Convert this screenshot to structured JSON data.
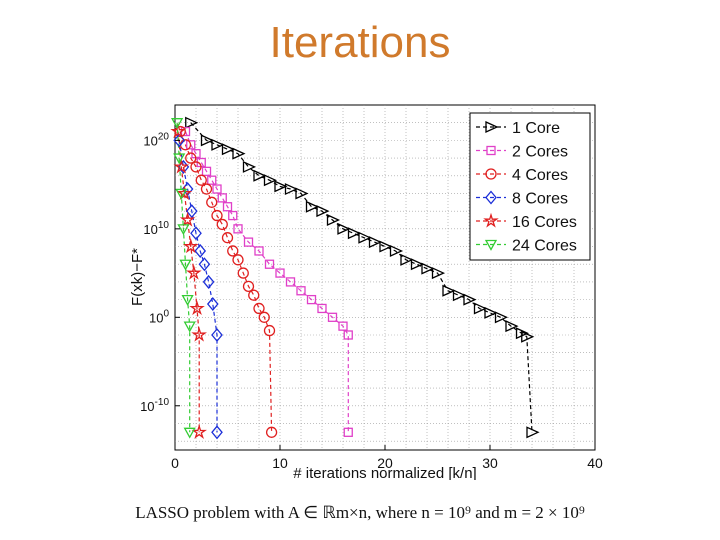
{
  "slide": {
    "title": "Iterations",
    "caption": "LASSO problem with A ∈ ℝm×n, where n = 10⁹ and m = 2 × 10⁹"
  },
  "chart_data": {
    "type": "line",
    "title": "",
    "xlabel": "# iterations normalized [k/n]",
    "ylabel": "F(xk)−F*",
    "y_scale": "log10",
    "xlim": [
      0,
      40
    ],
    "ylim_log10": [
      -15,
      24
    ],
    "x_ticks": [
      0,
      10,
      20,
      30,
      40
    ],
    "y_ticks": [
      {
        "label": "10",
        "exp": "-10",
        "value_log10": -10
      },
      {
        "label": "10",
        "exp": "0",
        "value_log10": 0
      },
      {
        "label": "10",
        "exp": "10",
        "value_log10": 10
      },
      {
        "label": "10",
        "exp": "20",
        "value_log10": 20
      }
    ],
    "grid": true,
    "legend_position": "top-right",
    "series": [
      {
        "name": "1 Core",
        "color": "#000000",
        "marker": "triangle-right",
        "x": [
          1.5,
          3,
          4,
          5,
          6,
          7,
          8,
          9,
          10,
          11,
          12,
          13,
          14,
          15,
          16,
          17,
          18,
          19,
          20,
          21,
          22,
          23,
          24,
          25,
          26,
          27,
          28,
          29,
          30,
          31,
          32,
          33,
          33.5,
          34
        ],
        "y_log10": [
          22,
          20,
          19.5,
          19,
          18.5,
          17,
          16,
          15.5,
          14.8,
          14.5,
          14,
          12.5,
          12,
          11,
          10,
          9.5,
          9,
          8.5,
          8,
          7.5,
          6.5,
          6,
          5.5,
          5,
          3,
          2.5,
          2,
          1,
          0.5,
          0,
          -1,
          -1.8,
          -2.2,
          -13
        ]
      },
      {
        "name": "2 Cores",
        "color": "#e040c8",
        "marker": "square",
        "x": [
          1,
          1.5,
          2,
          2.5,
          3,
          3.5,
          4,
          4.5,
          5,
          5.5,
          6,
          7,
          8,
          9,
          10,
          11,
          12,
          13,
          14,
          15,
          16,
          16.5,
          16.5
        ],
        "y_log10": [
          21,
          19.5,
          18.5,
          17.5,
          16.5,
          15.5,
          14.5,
          13.5,
          12.5,
          11.5,
          10,
          8.5,
          7.5,
          6,
          5,
          4,
          3,
          2,
          1,
          0,
          -1,
          -2,
          -13
        ]
      },
      {
        "name": "4 Cores",
        "color": "#e02020",
        "marker": "circle",
        "x": [
          0.5,
          1,
          1.5,
          2,
          2.5,
          3,
          3.5,
          4,
          4.5,
          5,
          5.5,
          6,
          6.5,
          7,
          7.5,
          8,
          8.5,
          9,
          9.2
        ],
        "y_log10": [
          21,
          19.5,
          18,
          17,
          15.5,
          14.5,
          13,
          11.5,
          10.5,
          9,
          7.5,
          6.5,
          5,
          3.5,
          2.5,
          1,
          0,
          -1.5,
          -13
        ]
      },
      {
        "name": "8 Cores",
        "color": "#1c2fd8",
        "marker": "diamond",
        "x": [
          0.4,
          0.8,
          1.2,
          1.6,
          2,
          2.4,
          2.8,
          3.2,
          3.6,
          4,
          4
        ],
        "y_log10": [
          20,
          17,
          14.5,
          12,
          9.5,
          7.5,
          6,
          4,
          1.5,
          -2,
          -13
        ]
      },
      {
        "name": "16 Cores",
        "color": "#e02020",
        "marker": "star",
        "x": [
          0.3,
          0.6,
          0.9,
          1.2,
          1.5,
          1.8,
          2.1,
          2.3,
          2.3
        ],
        "y_log10": [
          21,
          17,
          14,
          11,
          8,
          5,
          1,
          -2,
          -13
        ]
      },
      {
        "name": "24 Cores",
        "color": "#33cc33",
        "marker": "triangle-down",
        "x": [
          0.2,
          0.4,
          0.6,
          0.8,
          1,
          1.2,
          1.4,
          1.4
        ],
        "y_log10": [
          22,
          18,
          14,
          10,
          6,
          2,
          -1,
          -13
        ]
      }
    ]
  }
}
